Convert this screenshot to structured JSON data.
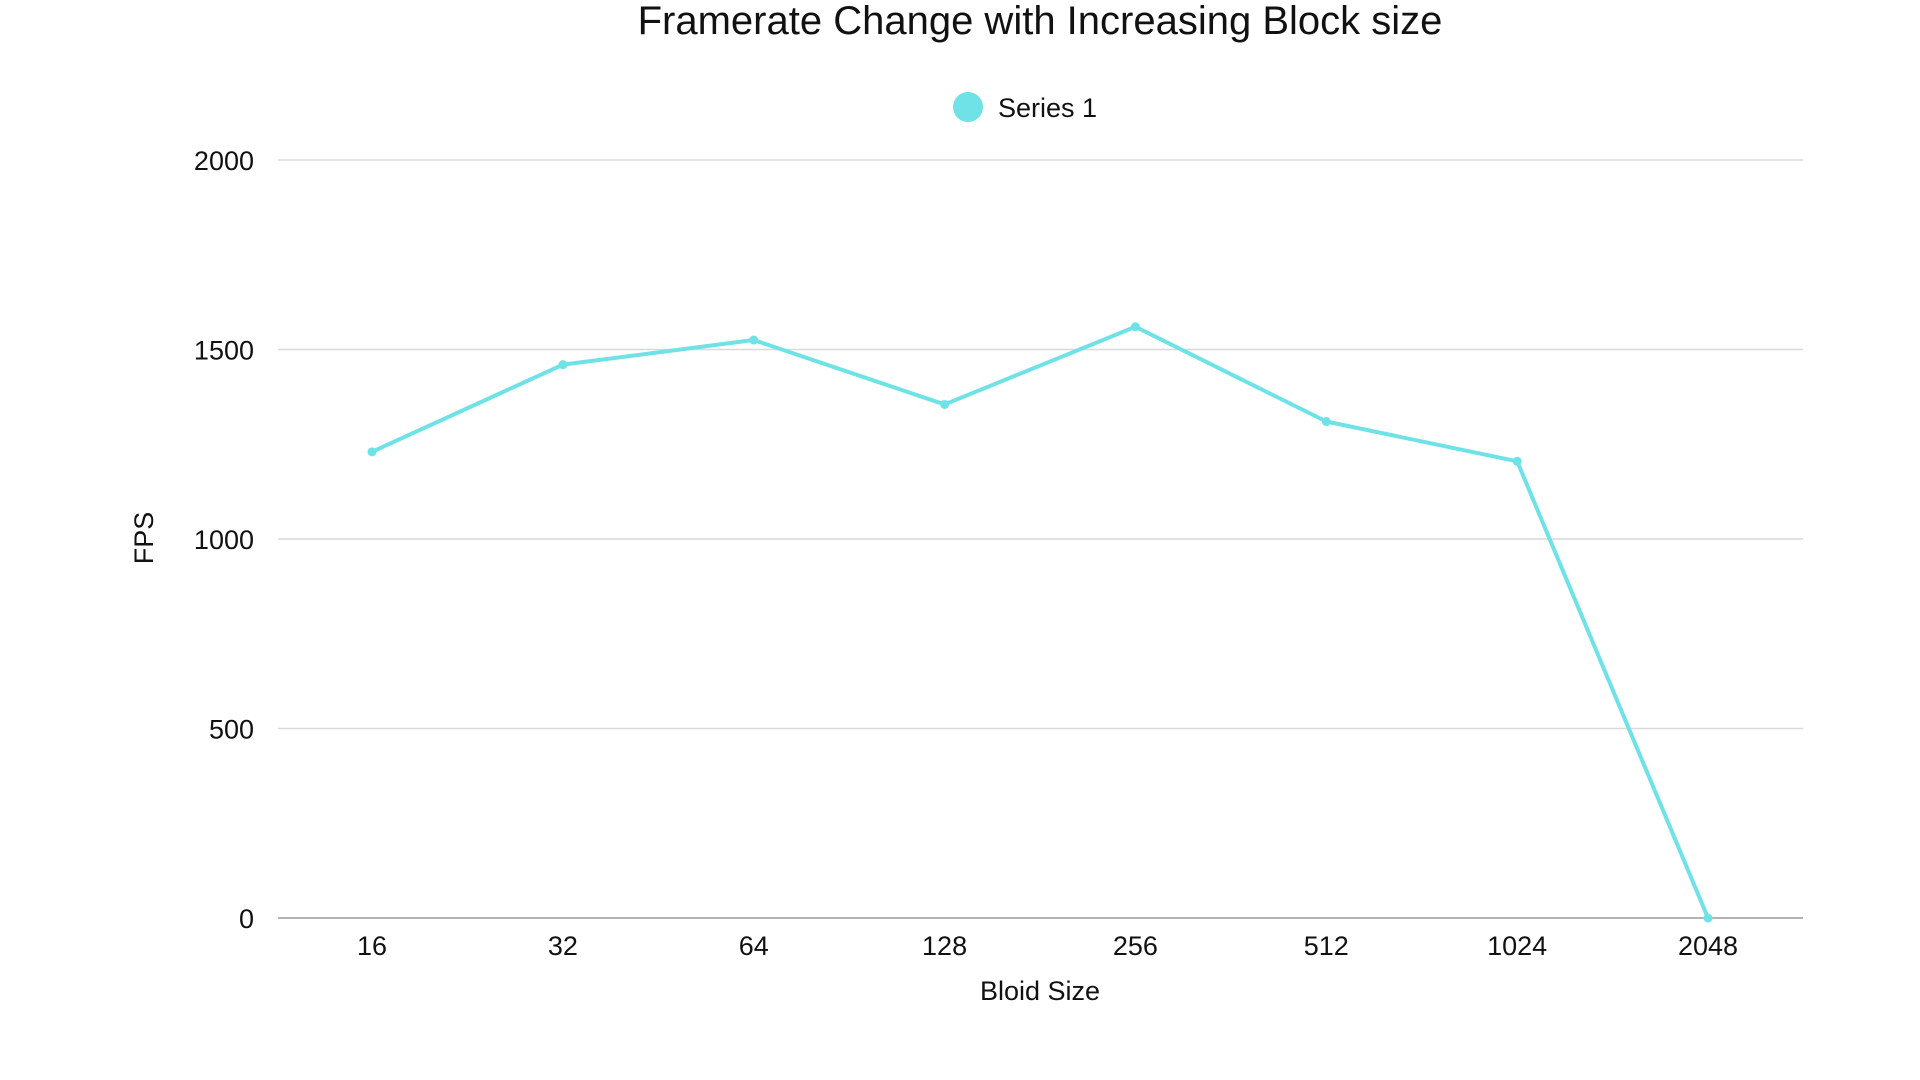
{
  "chart_data": {
    "type": "line",
    "title": "Framerate Change with Increasing Block size",
    "xlabel": "Bloid Size",
    "ylabel": "FPS",
    "categories": [
      "16",
      "32",
      "64",
      "128",
      "256",
      "512",
      "1024",
      "2048"
    ],
    "series": [
      {
        "name": "Series 1",
        "values": [
          1230,
          1460,
          1525,
          1355,
          1560,
          1310,
          1205,
          0
        ],
        "color": "#6EE2E6"
      }
    ],
    "ylim": [
      0,
      2000
    ],
    "yticks": [
      "0",
      "500",
      "1000",
      "1500",
      "2000"
    ],
    "grid": true,
    "legend": "top-center"
  }
}
